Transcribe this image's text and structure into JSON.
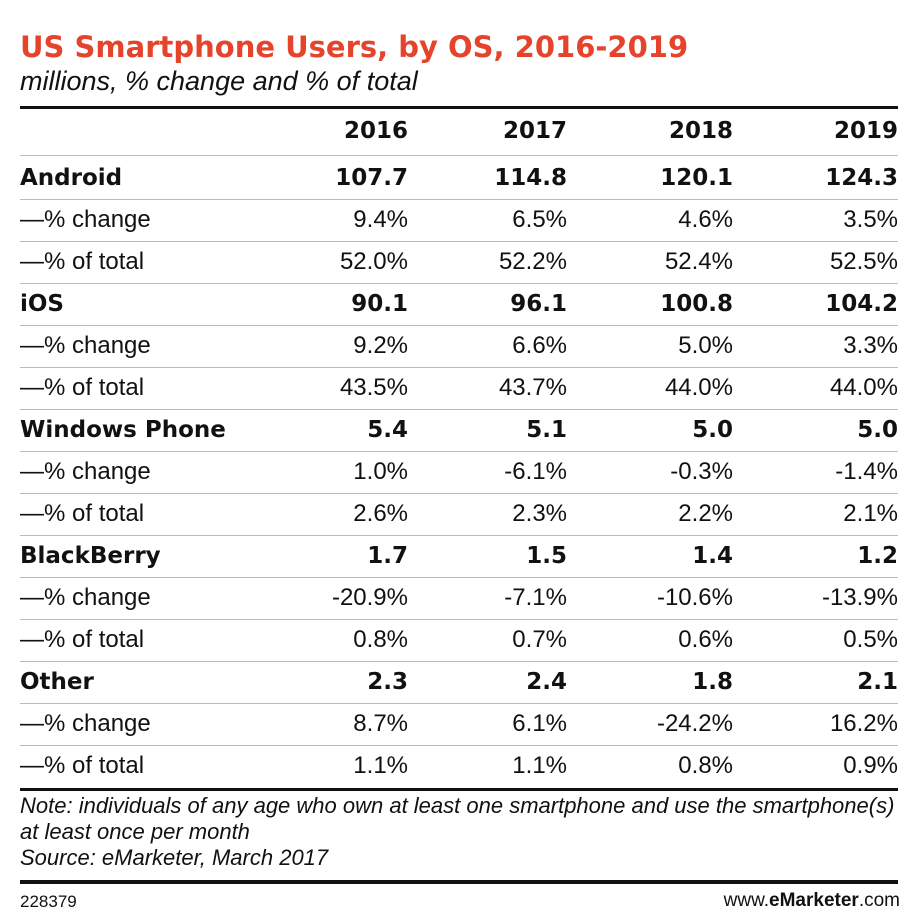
{
  "header": {
    "title": "US Smartphone Users, by OS, 2016-2019",
    "subtitle": "millions, % change and % of total"
  },
  "table": {
    "columns": [
      "2016",
      "2017",
      "2018",
      "2019"
    ],
    "rows": [
      [
        "Android",
        "107.7",
        "114.8",
        "120.1",
        "124.3"
      ],
      [
        "—% change",
        "9.4%",
        "6.5%",
        "4.6%",
        "3.5%"
      ],
      [
        "—% of total",
        "52.0%",
        "52.2%",
        "52.4%",
        "52.5%"
      ],
      [
        "iOS",
        "90.1",
        "96.1",
        "100.8",
        "104.2"
      ],
      [
        "—% change",
        "9.2%",
        "6.6%",
        "5.0%",
        "3.3%"
      ],
      [
        "—% of total",
        "43.5%",
        "43.7%",
        "44.0%",
        "44.0%"
      ],
      [
        "Windows Phone",
        "5.4",
        "5.1",
        "5.0",
        "5.0"
      ],
      [
        "—% change",
        "1.0%",
        "-6.1%",
        "-0.3%",
        "-1.4%"
      ],
      [
        "—% of total",
        "2.6%",
        "2.3%",
        "2.2%",
        "2.1%"
      ],
      [
        "BlackBerry",
        "1.7",
        "1.5",
        "1.4",
        "1.2"
      ],
      [
        "—% change",
        "-20.9%",
        "-7.1%",
        "-10.6%",
        "-13.9%"
      ],
      [
        "—% of total",
        "0.8%",
        "0.7%",
        "0.6%",
        "0.5%"
      ],
      [
        "Other",
        "2.3",
        "2.4",
        "1.8",
        "2.1"
      ],
      [
        "—% change",
        "8.7%",
        "6.1%",
        "-24.2%",
        "16.2%"
      ],
      [
        "—% of total",
        "1.1%",
        "1.1%",
        "0.8%",
        "0.9%"
      ]
    ]
  },
  "footer": {
    "note": "Note: individuals of any age who own at least one smartphone and use the smartphone(s) at least once per month",
    "source": "Source: eMarketer, March 2017",
    "id": "228379",
    "brand": [
      "www.",
      "eMarketer",
      ".com"
    ]
  }
}
